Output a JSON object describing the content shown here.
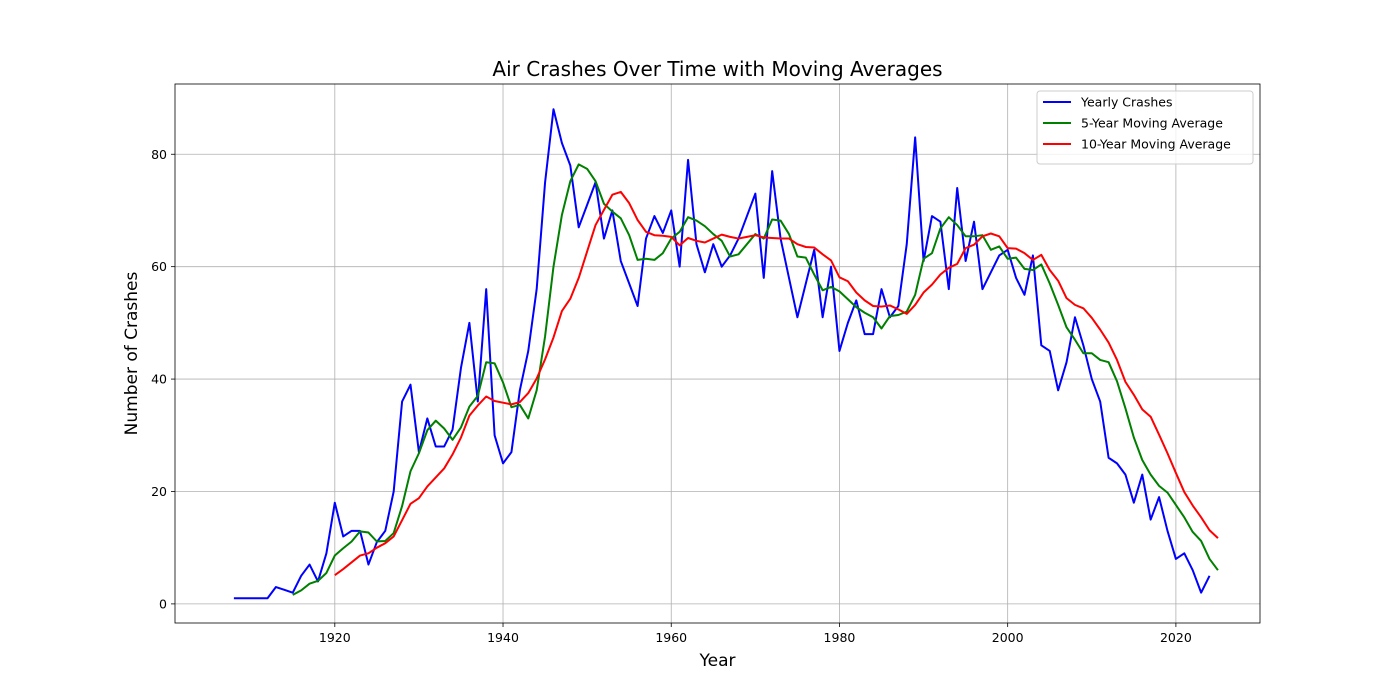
{
  "chart_data": {
    "type": "line",
    "title": "Air Crashes Over Time with Moving Averages",
    "xlabel": "Year",
    "ylabel": "Number of Crashes",
    "xlim": [
      1901,
      2030
    ],
    "ylim": [
      -3.4,
      92.5
    ],
    "xticks": [
      1920,
      1940,
      1960,
      1980,
      2000,
      2020
    ],
    "yticks": [
      0,
      20,
      40,
      60,
      80
    ],
    "grid": true,
    "legend_position": "top-right",
    "series": [
      {
        "name": "Yearly Crashes",
        "color": "#0000ff",
        "x_start": 1908,
        "values": [
          1,
          1,
          1,
          1,
          1,
          3,
          2.5,
          2,
          5,
          7,
          4,
          9,
          18,
          12,
          13,
          13,
          7,
          11,
          13,
          20,
          36,
          39,
          27,
          33,
          28,
          28,
          31,
          42,
          50,
          36,
          56,
          30,
          25,
          27,
          38,
          45,
          56,
          75,
          88,
          82,
          78,
          67,
          71,
          75,
          65,
          70,
          61,
          57,
          53,
          65,
          69,
          66,
          70,
          60,
          79,
          64,
          59,
          64,
          60,
          62,
          65,
          69,
          73,
          58,
          77,
          65,
          58,
          51,
          57,
          63,
          51,
          60,
          45,
          50,
          54,
          48,
          48,
          56,
          51,
          53,
          64,
          83,
          61,
          69,
          68,
          56,
          74,
          61,
          68,
          56,
          59,
          62,
          63,
          58,
          55,
          62,
          46,
          45,
          38,
          43,
          51,
          46,
          40,
          36,
          26,
          25,
          23,
          18,
          23,
          15,
          19,
          13,
          8,
          9,
          6,
          2,
          5
        ]
      },
      {
        "name": "5-Year Moving Average",
        "color": "#008000",
        "x_start": 1915,
        "values": [
          1.6,
          2.4,
          3.6,
          4.1,
          5.5,
          8.6,
          9.9,
          11.1,
          12.9,
          12.7,
          11.1,
          11.2,
          12.6,
          17.4,
          23.6,
          26.8,
          30.9,
          32.6,
          31.2,
          29.2,
          31.4,
          35.1,
          37.0,
          43.0,
          42.8,
          39.4,
          35.0,
          35.4,
          33.0,
          38.0,
          47.6,
          60.0,
          69.2,
          75.2,
          78.2,
          77.4,
          75.2,
          71.2,
          69.8,
          68.6,
          65.6,
          61.2,
          61.4,
          61.2,
          62.4,
          65.0,
          66.2,
          68.8,
          68.2,
          67.2,
          65.8,
          64.6,
          61.8,
          62.2,
          64.0,
          65.8,
          65.0,
          68.4,
          68.2,
          65.8,
          61.8,
          61.6,
          58.6,
          55.8,
          56.4,
          55.6,
          54.2,
          52.8,
          51.8,
          51.0,
          49.0,
          51.2,
          51.4,
          52.0,
          55.0,
          61.4,
          62.4,
          66.8,
          68.8,
          67.4,
          65.4,
          65.4,
          65.6,
          63.0,
          63.6,
          61.4,
          61.6,
          59.6,
          59.4,
          60.4,
          57.0,
          53.2,
          49.2,
          47.0,
          44.6,
          44.6,
          43.4,
          43.0,
          39.6,
          34.8,
          29.6,
          25.6,
          23.0,
          21.0,
          19.8,
          17.6,
          15.4,
          12.8,
          11.2,
          8.0,
          6.0
        ]
      },
      {
        "name": "10-Year Moving Average",
        "color": "#ff0000",
        "x_start": 1920,
        "values": [
          5.1,
          6.2,
          7.4,
          8.6,
          9.0,
          10.0,
          10.8,
          12.0,
          14.9,
          17.8,
          18.8,
          20.9,
          22.5,
          24.1,
          26.6,
          29.6,
          33.5,
          35.3,
          36.9,
          36.1,
          35.8,
          35.5,
          35.9,
          37.5,
          40.1,
          43.5,
          47.4,
          52.1,
          54.3,
          58.0,
          62.7,
          67.4,
          70.1,
          72.8,
          73.3,
          71.3,
          68.3,
          66.2,
          65.6,
          65.5,
          65.3,
          63.8,
          65.1,
          64.6,
          64.3,
          65.0,
          65.7,
          65.3,
          65.0,
          65.3,
          65.6,
          65.2,
          65.1,
          65.0,
          65.0,
          64.0,
          63.5,
          63.4,
          62.2,
          61.1,
          58.1,
          57.4,
          55.4,
          54.0,
          53.0,
          52.9,
          53.1,
          52.4,
          51.6,
          53.2,
          55.4,
          56.8,
          58.6,
          59.8,
          60.5,
          63.3,
          63.9,
          65.4,
          65.9,
          65.4,
          63.3,
          63.2,
          62.4,
          61.2,
          62.1,
          59.4,
          57.5,
          54.4,
          53.2,
          52.6,
          50.9,
          48.8,
          46.5,
          43.4,
          39.5,
          37.2,
          34.6,
          33.3,
          30.1,
          26.8,
          23.3,
          19.9,
          17.5,
          15.4,
          13.1,
          11.7
        ]
      }
    ]
  }
}
